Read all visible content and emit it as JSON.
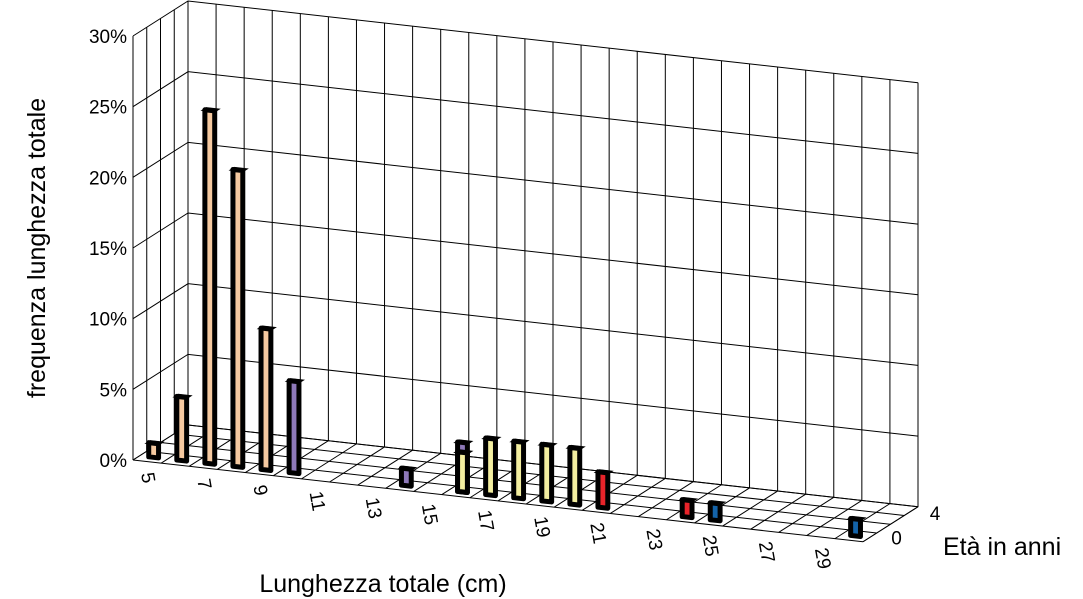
{
  "chart_data": {
    "type": "bar",
    "subtype": "3d-column",
    "title": "",
    "ylabel": "frequenza lunghezza totale",
    "xlabel": "Lunghezza totale (cm)",
    "zlabel": "Età in anni",
    "ylim": [
      0,
      0.3
    ],
    "y_ticks": [
      "0%",
      "5%",
      "10%",
      "15%",
      "20%",
      "25%",
      "30%"
    ],
    "x_ticks": [
      "5",
      "7",
      "9",
      "11",
      "13",
      "15",
      "17",
      "19",
      "21",
      "23",
      "25",
      "27",
      "29"
    ],
    "z_ticks": [
      "0",
      "4"
    ],
    "x": [
      5,
      6,
      7,
      8,
      9,
      10,
      11,
      12,
      13,
      14,
      15,
      16,
      17,
      18,
      19,
      20,
      21,
      22,
      23,
      24,
      25,
      26,
      27,
      28,
      29,
      30
    ],
    "series": [
      {
        "color": "#f5c9a0",
        "values": [
          0.01,
          0.045,
          0.25,
          0.21,
          0.1,
          0,
          0,
          0,
          0,
          0,
          0,
          0,
          0,
          0,
          0,
          0,
          0,
          0,
          0,
          0,
          0,
          0,
          0,
          0,
          0,
          0
        ]
      },
      {
        "color": "#8e79b9",
        "values": [
          0,
          0,
          0,
          0,
          0,
          0.065,
          0,
          0,
          0,
          0.012,
          0,
          0.035,
          0,
          0,
          0,
          0,
          0,
          0,
          0,
          0,
          0,
          0,
          0,
          0,
          0,
          0
        ]
      },
      {
        "color": "#f3eea0",
        "values": [
          0,
          0,
          0,
          0,
          0,
          0,
          0,
          0,
          0,
          0,
          0,
          0.028,
          0.04,
          0.04,
          0.04,
          0.04,
          0,
          0,
          0,
          0,
          0,
          0,
          0,
          0,
          0,
          0
        ]
      },
      {
        "color": "#e8242a",
        "values": [
          0,
          0,
          0,
          0,
          0,
          0,
          0,
          0,
          0,
          0,
          0,
          0,
          0,
          0,
          0,
          0,
          0.025,
          0,
          0,
          0.012,
          0,
          0,
          0,
          0,
          0,
          0
        ]
      },
      {
        "color": "#1463a8",
        "values": [
          0,
          0,
          0,
          0,
          0,
          0,
          0,
          0,
          0,
          0,
          0,
          0,
          0,
          0,
          0,
          0,
          0,
          0,
          0,
          0,
          0.012,
          0,
          0,
          0,
          0,
          0.012
        ]
      }
    ],
    "grid": true,
    "legend": "none"
  }
}
